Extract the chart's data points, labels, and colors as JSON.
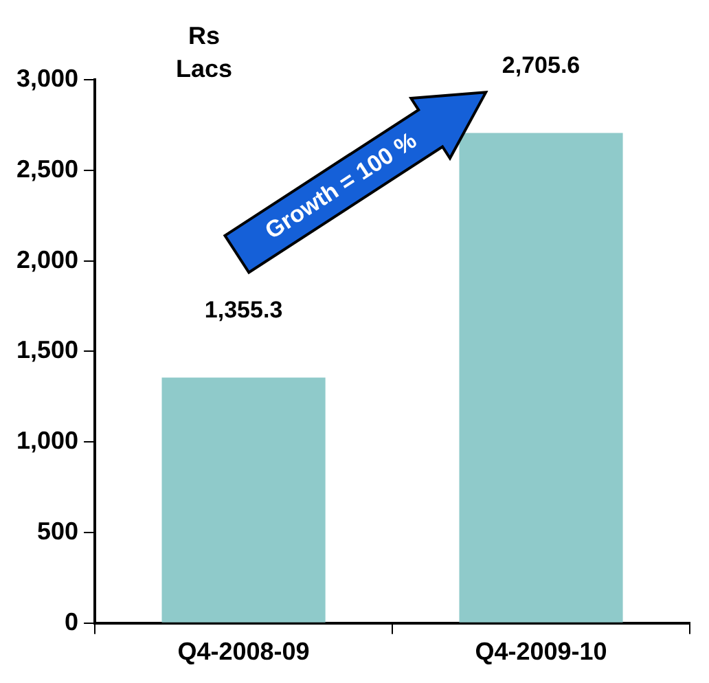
{
  "chart_data": {
    "type": "bar",
    "ylabel": "Rs\nLacs",
    "categories": [
      "Q4-2008-09",
      "Q4-2009-10"
    ],
    "values": [
      1355.3,
      2705.6
    ],
    "color": "#8fcaca",
    "value_labels": [
      "1,355.3",
      "2,705.6"
    ],
    "ylim": [
      0,
      3000
    ],
    "yticks": [
      0,
      500,
      {
        "value": 1000,
        "label": "1,000"
      },
      {
        "value": 1500,
        "label": "1,500"
      },
      {
        "value": 2000,
        "label": "2,000"
      },
      {
        "value": 2500,
        "label": "2,500"
      },
      {
        "value": 3000,
        "label": "3,000"
      }
    ],
    "grid": false,
    "legend": false,
    "annotations": [
      "Growth = 100 %"
    ]
  }
}
